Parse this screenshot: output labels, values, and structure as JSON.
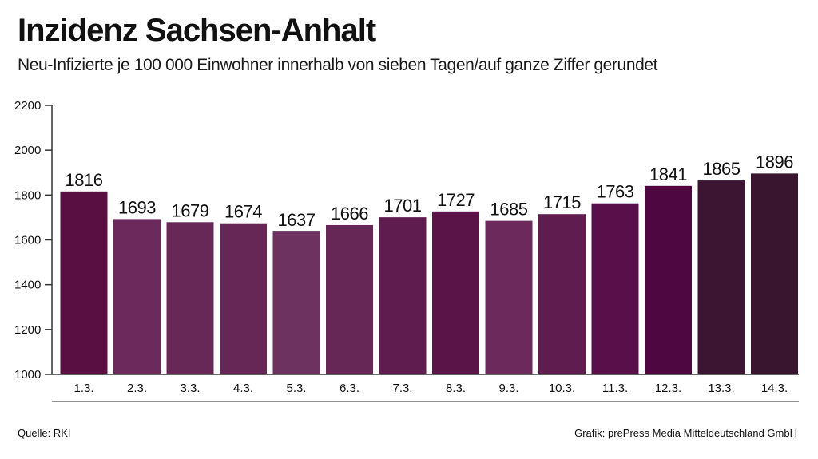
{
  "header": {
    "title": "Inzidenz Sachsen-Anhalt",
    "subtitle": "Neu-Infizierte je 100 000 Einwohner innerhalb von sieben Tagen/auf ganze Ziffer gerundet"
  },
  "footer": {
    "source": "Quelle: RKI",
    "credit": "Grafik: prePress Media Mitteldeutschland GmbH"
  },
  "chart_data": {
    "type": "bar",
    "title": "Inzidenz Sachsen-Anhalt",
    "subtitle": "Neu-Infizierte je 100 000 Einwohner innerhalb von sieben Tagen/auf ganze Ziffer gerundet",
    "xlabel": "",
    "ylabel": "",
    "categories": [
      "1.3.",
      "2.3.",
      "3.3.",
      "4.3.",
      "5.3.",
      "6.3.",
      "7.3.",
      "8.3.",
      "9.3.",
      "10.3.",
      "11.3.",
      "12.3.",
      "13.3.",
      "14.3."
    ],
    "values": [
      1816,
      1693,
      1679,
      1674,
      1637,
      1666,
      1701,
      1727,
      1685,
      1715,
      1763,
      1841,
      1865,
      1896
    ],
    "value_labels": [
      "1816",
      "1693",
      "1679",
      "1674",
      "1637",
      "1666",
      "1701",
      "1727",
      "1685",
      "1715",
      "1763",
      "1841",
      "1865",
      "1896"
    ],
    "ylim": [
      1000,
      2200
    ],
    "yticks": [
      1000,
      1200,
      1400,
      1600,
      1800,
      2000,
      2200
    ],
    "ytick_labels": [
      "1000",
      "1200",
      "1400",
      "1600",
      "1800",
      "2000",
      "2200"
    ],
    "grid": false,
    "bar_colors": [
      "#5a0f43",
      "#6b2a5b",
      "#682857",
      "#672756",
      "#6d325f",
      "#672756",
      "#5f1c4e",
      "#5a1448",
      "#6b2a5b",
      "#5f1c4e",
      "#59104a",
      "#4e0740",
      "#3c1533",
      "#3a1530"
    ]
  }
}
